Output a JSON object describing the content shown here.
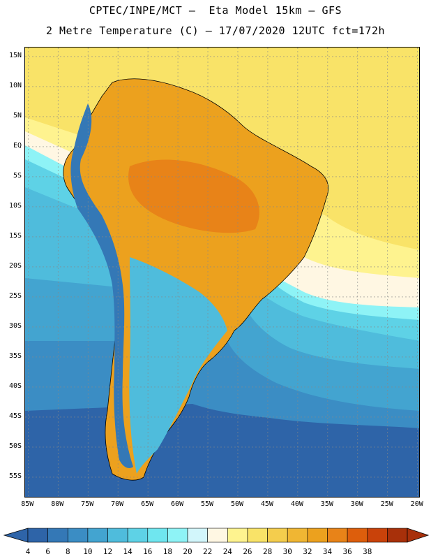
{
  "header": {
    "title_line1": "CPTEC/INPE/MCT –  Eta Model 15km – GFS",
    "title_line2": "2 Metre Temperature (C) – 17/07/2020 12UTC fct=172h"
  },
  "map": {
    "lat_labels": [
      "15N",
      "10N",
      "5N",
      "EQ",
      "5S",
      "10S",
      "15S",
      "20S",
      "25S",
      "30S",
      "35S",
      "40S",
      "45S",
      "50S",
      "55S"
    ],
    "lat_values": [
      15,
      10,
      5,
      0,
      -5,
      -10,
      -15,
      -20,
      -25,
      -30,
      -35,
      -40,
      -45,
      -50,
      -55
    ],
    "lon_labels": [
      "85W",
      "80W",
      "75W",
      "70W",
      "65W",
      "60W",
      "55W",
      "50W",
      "45W",
      "40W",
      "35W",
      "30W",
      "25W",
      "20W"
    ],
    "lon_values": [
      -85,
      -80,
      -75,
      -70,
      -65,
      -60,
      -55,
      -50,
      -45,
      -40,
      -35,
      -30,
      -25,
      -20
    ],
    "extent": {
      "lon_min": -85.5,
      "lon_max": -19.5,
      "lat_min": -58.5,
      "lat_max": 16.5
    }
  },
  "colorbar": {
    "labels": [
      "4",
      "6",
      "8",
      "10",
      "12",
      "14",
      "16",
      "18",
      "20",
      "22",
      "24",
      "26",
      "28",
      "30",
      "32",
      "34",
      "36",
      "38"
    ],
    "colors": [
      "#2e64a8",
      "#3478b6",
      "#3b8dc4",
      "#43a4d0",
      "#4fbcdc",
      "#5ed2e6",
      "#6fe6ef",
      "#8ef3f6",
      "#d2f6fb",
      "#fff7e3",
      "#fef38f",
      "#f9e368",
      "#f4cd4d",
      "#f0b633",
      "#eca11e",
      "#e88318",
      "#dd5e0c",
      "#c9420a",
      "#a8300a"
    ]
  }
}
